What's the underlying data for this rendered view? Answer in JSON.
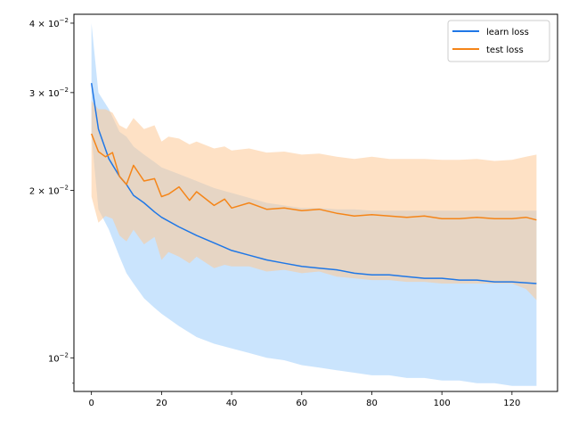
{
  "chart_data": {
    "type": "line",
    "title": "",
    "xlabel": "",
    "ylabel": "",
    "yscale": "log",
    "xlim": [
      -5,
      133
    ],
    "ylim": [
      0.0087,
      0.0415
    ],
    "xticks": [
      0,
      20,
      40,
      60,
      80,
      100,
      120
    ],
    "xtick_labels": [
      "0",
      "20",
      "40",
      "60",
      "80",
      "100",
      "120"
    ],
    "yticks": [
      {
        "value": 0.04,
        "mantissa": "4",
        "base": "10",
        "exp": "-2"
      },
      {
        "value": 0.03,
        "mantissa": "3",
        "base": "10",
        "exp": "-2"
      },
      {
        "value": 0.02,
        "mantissa": "2",
        "base": "10",
        "exp": "-2"
      },
      {
        "value": 0.01,
        "mantissa": "",
        "base": "10",
        "exp": "-2"
      }
    ],
    "minor_yticks": [
      0.009
    ],
    "grid": false,
    "legend_position": "top-right",
    "series": [
      {
        "name": "learn loss",
        "color": "#1f77e6",
        "band_color": "#9fcdfb",
        "x": [
          0,
          2,
          5,
          8,
          10,
          12,
          15,
          18,
          20,
          25,
          30,
          35,
          40,
          45,
          50,
          55,
          60,
          65,
          70,
          75,
          80,
          85,
          90,
          95,
          100,
          105,
          110,
          115,
          120,
          127
        ],
        "y": [
          0.0312,
          0.0258,
          0.0228,
          0.0212,
          0.0205,
          0.0196,
          0.019,
          0.0183,
          0.0179,
          0.0172,
          0.0166,
          0.0161,
          0.0156,
          0.0153,
          0.015,
          0.0148,
          0.0146,
          0.0145,
          0.0144,
          0.0142,
          0.0141,
          0.0141,
          0.014,
          0.0139,
          0.0139,
          0.0138,
          0.0138,
          0.0137,
          0.0137,
          0.0136
        ],
        "lower": [
          0.0252,
          0.0185,
          0.017,
          0.0152,
          0.0142,
          0.0136,
          0.0128,
          0.0123,
          0.012,
          0.0114,
          0.0109,
          0.0106,
          0.0104,
          0.0102,
          0.01,
          0.0099,
          0.0097,
          0.0096,
          0.0095,
          0.0094,
          0.0093,
          0.0093,
          0.0092,
          0.0092,
          0.0091,
          0.0091,
          0.009,
          0.009,
          0.0089,
          0.0089
        ],
        "upper": [
          0.04,
          0.03,
          0.028,
          0.0255,
          0.025,
          0.024,
          0.0232,
          0.0225,
          0.022,
          0.0214,
          0.0208,
          0.0202,
          0.0198,
          0.0194,
          0.019,
          0.0188,
          0.0186,
          0.0186,
          0.0185,
          0.0185,
          0.0184,
          0.0184,
          0.0184,
          0.0184,
          0.0184,
          0.0184,
          0.0184,
          0.0184,
          0.0184,
          0.0184
        ]
      },
      {
        "name": "test loss",
        "color": "#f58518",
        "band_color": "#fdc896",
        "x": [
          0,
          2,
          4,
          6,
          8,
          10,
          12,
          15,
          18,
          20,
          22,
          25,
          28,
          30,
          35,
          38,
          40,
          45,
          50,
          55,
          60,
          65,
          70,
          75,
          80,
          85,
          90,
          95,
          100,
          105,
          110,
          115,
          120,
          124,
          127
        ],
        "y": [
          0.0253,
          0.0235,
          0.023,
          0.0234,
          0.0212,
          0.0205,
          0.0222,
          0.0208,
          0.021,
          0.0195,
          0.0197,
          0.0203,
          0.0192,
          0.0199,
          0.0188,
          0.0193,
          0.0186,
          0.019,
          0.0185,
          0.0186,
          0.0184,
          0.0185,
          0.0182,
          0.018,
          0.0181,
          0.018,
          0.0179,
          0.018,
          0.0178,
          0.0178,
          0.0179,
          0.0178,
          0.0178,
          0.0179,
          0.0177
        ],
        "lower": [
          0.0195,
          0.0175,
          0.018,
          0.0178,
          0.0166,
          0.0162,
          0.017,
          0.016,
          0.0165,
          0.015,
          0.0155,
          0.0152,
          0.0148,
          0.0152,
          0.0145,
          0.0147,
          0.0146,
          0.0146,
          0.0143,
          0.0144,
          0.0142,
          0.0143,
          0.014,
          0.0139,
          0.0138,
          0.0138,
          0.0137,
          0.0137,
          0.0136,
          0.0136,
          0.0136,
          0.0136,
          0.0136,
          0.0133,
          0.0127
        ],
        "upper": [
          0.029,
          0.028,
          0.028,
          0.0276,
          0.0262,
          0.0258,
          0.027,
          0.0258,
          0.0262,
          0.0245,
          0.025,
          0.0248,
          0.0242,
          0.0245,
          0.0238,
          0.024,
          0.0236,
          0.0238,
          0.0234,
          0.0235,
          0.0232,
          0.0233,
          0.023,
          0.0228,
          0.023,
          0.0228,
          0.0228,
          0.0228,
          0.0227,
          0.0227,
          0.0228,
          0.0226,
          0.0227,
          0.023,
          0.0232
        ]
      }
    ]
  }
}
